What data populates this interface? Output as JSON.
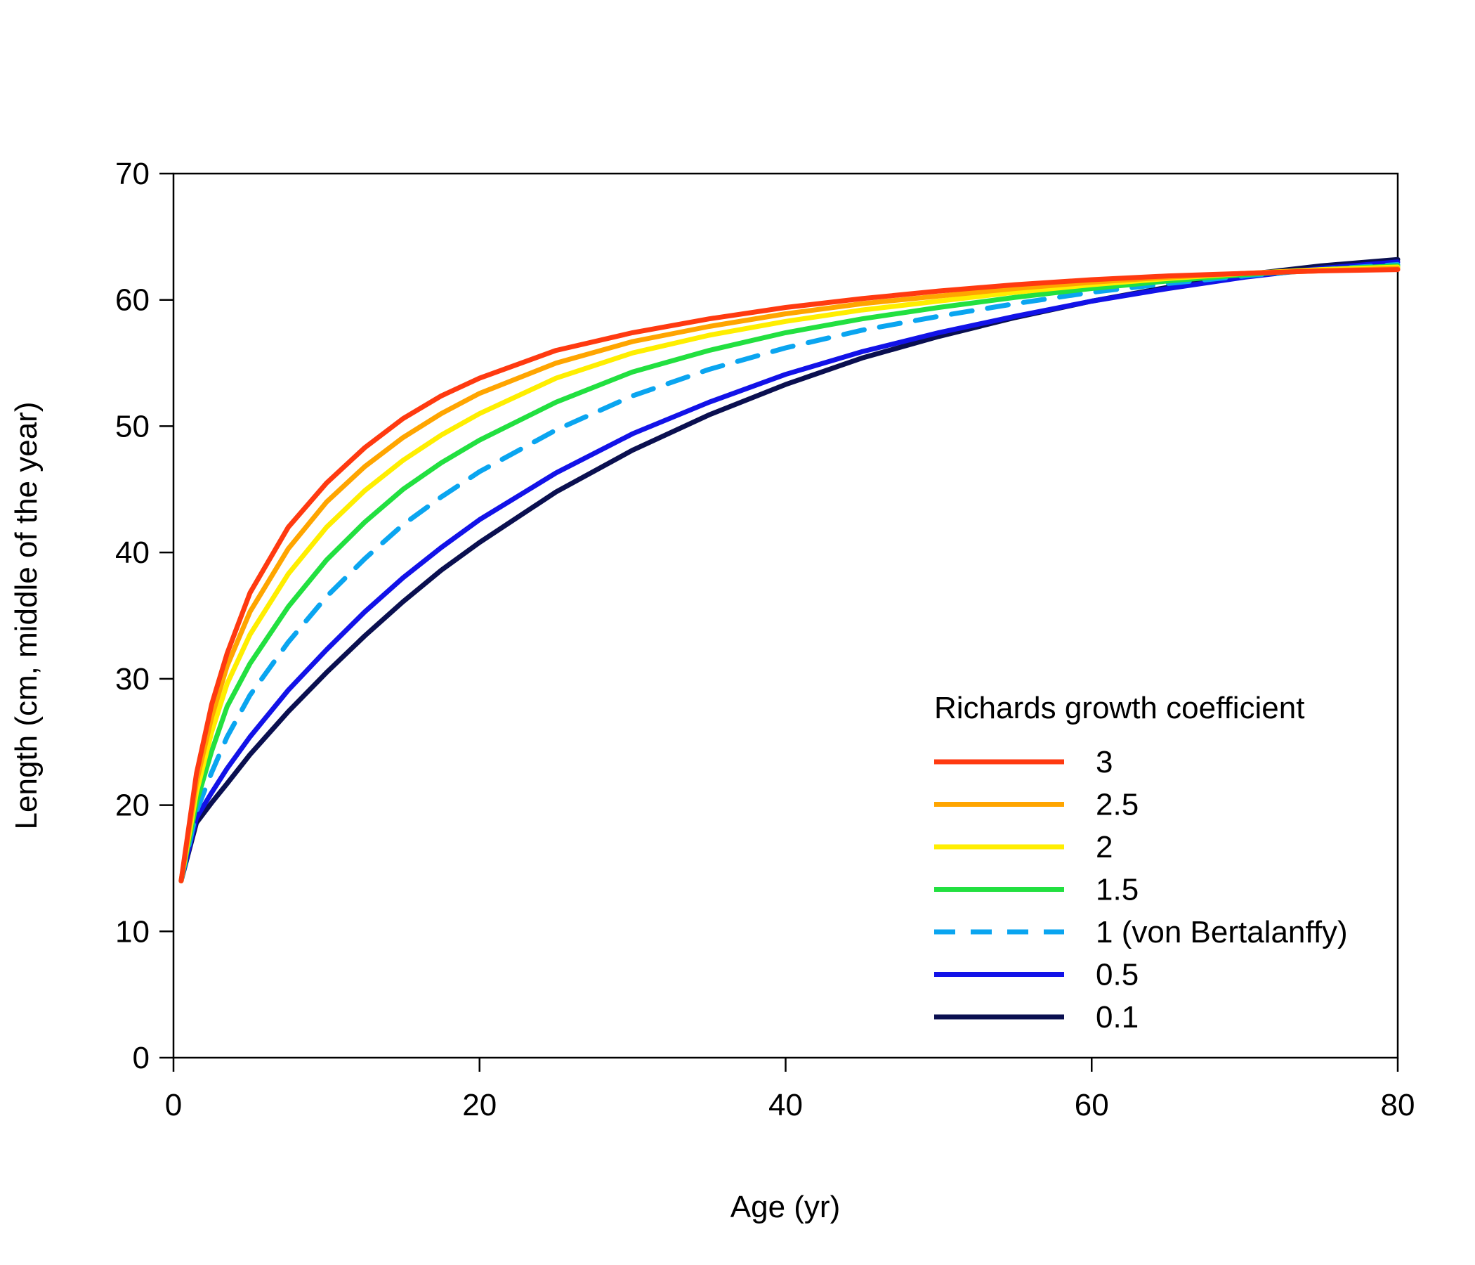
{
  "chart_data": {
    "type": "line",
    "title": "",
    "xlabel": "Age (yr)",
    "ylabel": "Length (cm, middle of the year)",
    "xlim": [
      0,
      80
    ],
    "ylim": [
      0,
      70
    ],
    "xticks": [
      0,
      20,
      40,
      60,
      80
    ],
    "yticks": [
      0,
      10,
      20,
      30,
      40,
      50,
      60,
      70
    ],
    "grid": false,
    "legend": {
      "title": "Richards growth coefficient",
      "placement": "bottom-right"
    },
    "x": [
      0.5,
      1.5,
      2.5,
      3.5,
      5,
      7.5,
      10,
      12.5,
      15,
      17.5,
      20,
      25,
      30,
      35,
      40,
      45,
      50,
      55,
      60,
      65,
      70,
      75,
      80
    ],
    "series": [
      {
        "name": "3",
        "color": "#FF3A10",
        "dashed": false,
        "values": [
          14,
          22.5,
          28,
          32,
          36.8,
          42,
          45.5,
          48.3,
          50.6,
          52.4,
          53.8,
          56,
          57.4,
          58.5,
          59.4,
          60.1,
          60.7,
          61.2,
          61.6,
          61.9,
          62.1,
          62.3,
          62.4
        ]
      },
      {
        "name": "2.5",
        "color": "#FFA500",
        "dashed": false,
        "values": [
          14,
          21.8,
          27,
          31,
          35.3,
          40.3,
          44,
          46.8,
          49.1,
          51,
          52.6,
          55,
          56.7,
          57.9,
          58.9,
          59.7,
          60.3,
          60.9,
          61.4,
          61.8,
          62.1,
          62.3,
          62.5
        ]
      },
      {
        "name": "2",
        "color": "#FFEE00",
        "dashed": false,
        "values": [
          14,
          21,
          25.8,
          29.6,
          33.5,
          38.3,
          42,
          44.9,
          47.3,
          49.3,
          51,
          53.8,
          55.8,
          57.2,
          58.3,
          59.2,
          59.9,
          60.6,
          61.2,
          61.7,
          62.1,
          62.4,
          62.6
        ]
      },
      {
        "name": "1.5",
        "color": "#22E040",
        "dashed": false,
        "values": [
          14,
          20.2,
          24.3,
          27.8,
          31.2,
          35.7,
          39.4,
          42.4,
          45,
          47.1,
          48.9,
          51.9,
          54.3,
          56,
          57.4,
          58.5,
          59.4,
          60.2,
          60.9,
          61.5,
          62,
          62.4,
          62.7
        ]
      },
      {
        "name": "1 (von Bertalanffy)",
        "color": "#0AA5F0",
        "dashed": true,
        "values": [
          14,
          19.5,
          22.6,
          25.4,
          28.7,
          32.9,
          36.5,
          39.5,
          42.2,
          44.4,
          46.4,
          49.7,
          52.4,
          54.5,
          56.2,
          57.6,
          58.7,
          59.7,
          60.6,
          61.3,
          61.9,
          62.4,
          62.8
        ]
      },
      {
        "name": "0.5",
        "color": "#1212E8",
        "dashed": false,
        "values": [
          14,
          19,
          21,
          22.9,
          25.4,
          29.1,
          32.3,
          35.3,
          38,
          40.4,
          42.6,
          46.3,
          49.4,
          51.9,
          54.1,
          55.9,
          57.4,
          58.7,
          59.9,
          60.9,
          61.8,
          62.5,
          63
        ]
      },
      {
        "name": "0.1",
        "color": "#0A0F50",
        "dashed": false,
        "values": [
          14,
          18.6,
          20.2,
          21.7,
          24,
          27.4,
          30.5,
          33.4,
          36.1,
          38.6,
          40.8,
          44.8,
          48.1,
          50.9,
          53.3,
          55.4,
          57.1,
          58.6,
          59.9,
          61,
          62,
          62.7,
          63.2
        ]
      }
    ]
  }
}
